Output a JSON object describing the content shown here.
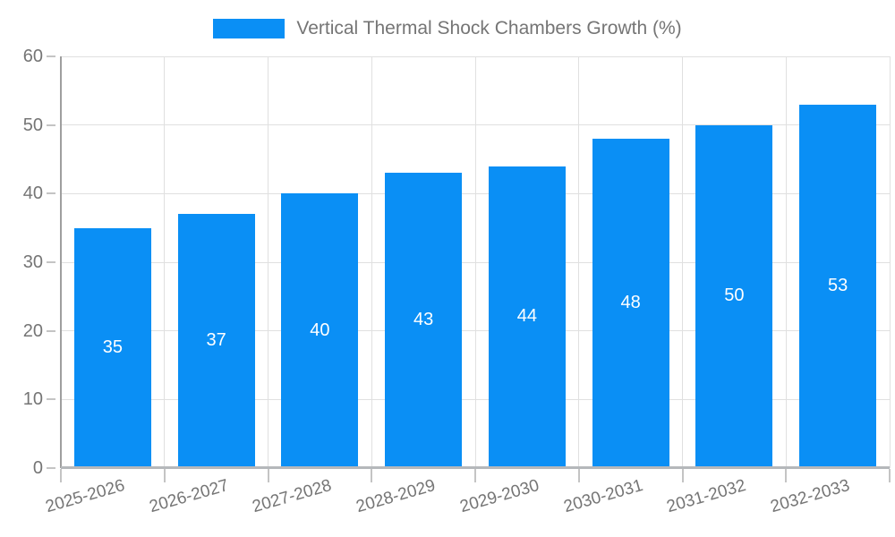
{
  "legend": {
    "label": "Vertical Thermal Shock Chambers Growth (%)"
  },
  "chart_data": {
    "type": "bar",
    "title": "Vertical Thermal Shock Chambers Growth (%)",
    "categories": [
      "2025-2026",
      "2026-2027",
      "2027-2028",
      "2028-2029",
      "2029-2030",
      "2030-2031",
      "2031-2032",
      "2032-2033"
    ],
    "values": [
      35,
      37,
      40,
      43,
      44,
      48,
      50,
      53
    ],
    "yticks": [
      0,
      10,
      20,
      30,
      40,
      50,
      60
    ],
    "ylim": [
      0,
      60
    ],
    "xlabel": "",
    "ylabel": "",
    "grid": true,
    "legend_position": "top-center",
    "data_labels": "inside-center"
  },
  "colors": {
    "bar": "#0a8ff5",
    "grid": "#e0e0e0",
    "axis_y": "#9e9e9e",
    "axis_x": "#b5b8bb",
    "tick": "#c4c4c4",
    "text": "#757575",
    "data_label": "#ffffff",
    "background": "#ffffff"
  }
}
